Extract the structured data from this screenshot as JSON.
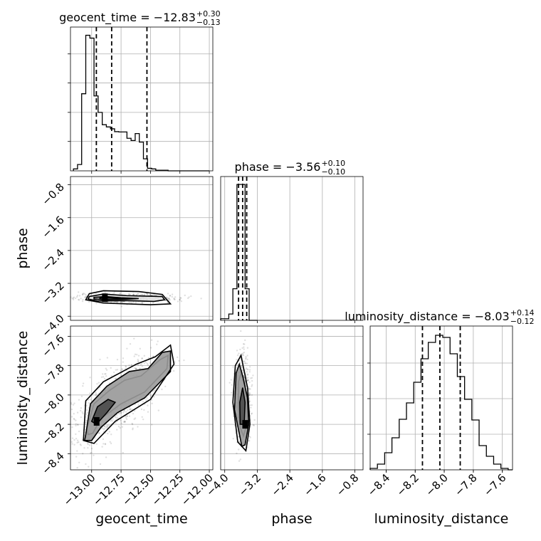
{
  "chart_data": {
    "type": "corner",
    "parameters": [
      {
        "name": "geocent_time",
        "range": [
          -13.18,
          -11.97
        ],
        "ticks": [
          -13.0,
          -12.75,
          -12.5,
          -12.25,
          -12.0
        ],
        "tick_labels": [
          "−13.00",
          "−12.75",
          "−12.50",
          "−12.25",
          "−12.00"
        ],
        "title": {
          "main": "geocent_time = −12.83",
          "plus": "+0.30",
          "minus": "−0.13"
        },
        "quantiles": [
          -12.96,
          -12.83,
          -12.53
        ],
        "hist_edges": [
          -13.155,
          -13.12,
          -13.085,
          -13.05,
          -13.015,
          -12.98,
          -12.945,
          -12.91,
          -12.875,
          -12.84,
          -12.805,
          -12.77,
          -12.735,
          -12.7,
          -12.665,
          -12.63,
          -12.595,
          -12.56,
          -12.525,
          -12.49,
          -12.455,
          -12.42,
          -12.385,
          -12.35,
          -12.315,
          -12.28,
          -12.245,
          -12.21,
          -12.175,
          -12.14,
          -12.105,
          -12.07,
          -12.035,
          -12.0
        ],
        "hist_counts": [
          0.6,
          2.0,
          24.4,
          42.9,
          42.0,
          23.7,
          18.5,
          14.6,
          13.9,
          13.3,
          12.4,
          12.3,
          12.3,
          10.3,
          9.6,
          11.8,
          9.1,
          3.8,
          0.8,
          0.6,
          0.2,
          0.2,
          0.2,
          0,
          0,
          0,
          0,
          0,
          0,
          0,
          0,
          0,
          0
        ],
        "hist_ymax": 45.5,
        "y_ticks": [
          9.3,
          18.5,
          27.8,
          37.0
        ]
      },
      {
        "name": "phase",
        "range": [
          -4.1,
          -0.6
        ],
        "ticks": [
          -4.0,
          -3.2,
          -2.4,
          -1.6,
          -0.8
        ],
        "tick_labels": [
          "−4.0",
          "−3.2",
          "−2.4",
          "−1.6",
          "−0.8"
        ],
        "title": {
          "main": "phase = −3.56",
          "plus": "+0.10",
          "minus": "−0.10"
        },
        "quantiles": [
          -3.66,
          -3.56,
          -3.46
        ],
        "hist_edges": [
          -4.1,
          -3.9,
          -3.8,
          -3.7,
          -3.6,
          -3.5,
          -3.4,
          -3.2
        ],
        "hist_counts": [
          0.5,
          2.0,
          10.0,
          43.0,
          43.0,
          10.0,
          0
        ],
        "hist_ymax": 45.5
      },
      {
        "name": "luminosity_distance",
        "range": [
          -8.51,
          -7.53
        ],
        "ticks": [
          -8.4,
          -8.2,
          -8.0,
          -7.8,
          -7.6
        ],
        "tick_labels": [
          "−8.4",
          "−8.2",
          "−8.0",
          "−7.8",
          "−7.6"
        ],
        "title": {
          "main": "luminosity_distance = −8.03",
          "plus": "+0.14",
          "minus": "−0.12"
        },
        "quantiles": [
          -8.15,
          -8.03,
          -7.89
        ],
        "hist_edges": [
          -8.51,
          -8.46,
          -8.41,
          -8.36,
          -8.31,
          -8.26,
          -8.21,
          -8.16,
          -8.11,
          -8.06,
          -8.01,
          -7.96,
          -7.91,
          -7.86,
          -7.81,
          -7.76,
          -7.71,
          -7.66,
          -7.61,
          -7.56,
          -7.53
        ],
        "hist_counts": [
          0.2,
          0.8,
          2.4,
          4.5,
          7.1,
          9.4,
          12.3,
          15.6,
          17.9,
          18.9,
          18.6,
          16.3,
          13.1,
          9.9,
          7.0,
          3.4,
          1.9,
          0.8,
          0.2,
          0
        ],
        "hist_ymax": 20.2,
        "y_ticks": [
          5.0,
          10.0,
          15.0
        ]
      }
    ],
    "labels": {
      "x": [
        "geocent_time",
        "phase",
        "luminosity_distance"
      ],
      "y": [
        "phase",
        "luminosity_distance"
      ]
    },
    "contours": [
      {
        "x": "geocent_time",
        "y": "phase",
        "levels": [
          [
            [
              -13.02,
              -3.52
            ],
            [
              -12.9,
              -3.46
            ],
            [
              -12.7,
              -3.5
            ],
            [
              -12.4,
              -3.52
            ],
            [
              -12.38,
              -3.6
            ],
            [
              -12.47,
              -3.64
            ],
            [
              -12.7,
              -3.62
            ],
            [
              -12.95,
              -3.63
            ],
            [
              -13.03,
              -3.58
            ]
          ],
          [
            [
              -12.98,
              -3.54
            ],
            [
              -12.88,
              -3.52
            ],
            [
              -12.75,
              -3.55
            ],
            [
              -12.6,
              -3.57
            ],
            [
              -12.75,
              -3.59
            ],
            [
              -12.9,
              -3.6
            ],
            [
              -12.98,
              -3.58
            ]
          ],
          [
            [
              -12.93,
              -3.55
            ],
            [
              -12.85,
              -3.55
            ],
            [
              -12.7,
              -3.57
            ],
            [
              -12.85,
              -3.59
            ],
            [
              -12.93,
              -3.58
            ]
          ],
          [
            [
              -13.02,
              -3.45
            ],
            [
              -12.9,
              -3.38
            ],
            [
              -12.6,
              -3.4
            ],
            [
              -12.4,
              -3.47
            ],
            [
              -12.33,
              -3.7
            ],
            [
              -12.5,
              -3.72
            ],
            [
              -12.9,
              -3.68
            ],
            [
              -13.05,
              -3.6
            ]
          ]
        ]
      },
      {
        "x": "geocent_time",
        "y": "luminosity_distance",
        "levels": [
          [
            [
              -13.04,
              -8.23
            ],
            [
              -12.98,
              -8.06
            ],
            [
              -12.85,
              -7.97
            ],
            [
              -12.72,
              -7.9
            ],
            [
              -12.58,
              -7.87
            ],
            [
              -12.42,
              -7.76
            ],
            [
              -12.35,
              -7.73
            ],
            [
              -12.36,
              -7.82
            ],
            [
              -12.55,
              -7.98
            ],
            [
              -12.75,
              -8.06
            ],
            [
              -12.92,
              -8.16
            ],
            [
              -12.99,
              -8.26
            ],
            [
              -13.03,
              -8.27
            ]
          ],
          [
            [
              -13.05,
              -8.27
            ],
            [
              -13.01,
              -8.06
            ],
            [
              -12.87,
              -7.94
            ],
            [
              -12.68,
              -7.84
            ],
            [
              -12.52,
              -7.82
            ],
            [
              -12.4,
              -7.71
            ],
            [
              -12.33,
              -7.7
            ],
            [
              -12.33,
              -7.84
            ],
            [
              -12.55,
              -8.02
            ],
            [
              -12.78,
              -8.12
            ],
            [
              -12.92,
              -8.22
            ],
            [
              -13.0,
              -8.31
            ],
            [
              -13.06,
              -8.31
            ]
          ],
          [
            [
              -13.0,
              -8.18
            ],
            [
              -12.95,
              -8.08
            ],
            [
              -12.86,
              -8.03
            ],
            [
              -12.8,
              -8.05
            ],
            [
              -12.87,
              -8.12
            ],
            [
              -12.96,
              -8.2
            ]
          ],
          [
            [
              -13.07,
              -8.31
            ],
            [
              -13.05,
              -8.04
            ],
            [
              -12.9,
              -7.91
            ],
            [
              -12.62,
              -7.79
            ],
            [
              -12.46,
              -7.74
            ],
            [
              -12.33,
              -7.66
            ],
            [
              -12.3,
              -7.79
            ],
            [
              -12.5,
              -8.03
            ],
            [
              -12.8,
              -8.18
            ],
            [
              -12.98,
              -8.33
            ]
          ]
        ]
      },
      {
        "x": "phase",
        "y": "luminosity_distance",
        "levels": [
          [
            [
              -3.62,
              -8.22
            ],
            [
              -3.66,
              -8.08
            ],
            [
              -3.66,
              -7.91
            ],
            [
              -3.6,
              -7.85
            ],
            [
              -3.52,
              -7.93
            ],
            [
              -3.45,
              -8.05
            ],
            [
              -3.46,
              -8.2
            ],
            [
              -3.54,
              -8.28
            ]
          ],
          [
            [
              -3.63,
              -8.28
            ],
            [
              -3.76,
              -8.1
            ],
            [
              -3.72,
              -7.85
            ],
            [
              -3.64,
              -7.79
            ],
            [
              -3.55,
              -7.88
            ],
            [
              -3.44,
              -8.02
            ],
            [
              -3.41,
              -8.2
            ],
            [
              -3.5,
              -8.34
            ],
            [
              -3.58,
              -8.35
            ]
          ],
          [
            [
              -3.62,
              -8.2
            ],
            [
              -3.63,
              -8.05
            ],
            [
              -3.56,
              -7.95
            ],
            [
              -3.5,
              -8.05
            ],
            [
              -3.52,
              -8.2
            ]
          ],
          [
            [
              -3.68,
              -8.32
            ],
            [
              -3.8,
              -8.05
            ],
            [
              -3.74,
              -7.8
            ],
            [
              -3.6,
              -7.73
            ],
            [
              -3.44,
              -7.95
            ],
            [
              -3.38,
              -8.2
            ],
            [
              -3.48,
              -8.38
            ]
          ]
        ]
      }
    ],
    "samples": [
      {
        "x": "geocent_time",
        "y": "phase",
        "center": [
          -12.7,
          -3.56
        ],
        "spread": [
          0.2,
          0.05
        ]
      },
      {
        "x": "geocent_time",
        "y": "luminosity_distance",
        "center": [
          -12.8,
          -8.05
        ],
        "spread": [
          0.2,
          0.12
        ]
      },
      {
        "x": "phase",
        "y": "luminosity_distance",
        "center": [
          -3.56,
          -8.03
        ],
        "spread": [
          0.1,
          0.14
        ]
      }
    ],
    "grid": true
  }
}
